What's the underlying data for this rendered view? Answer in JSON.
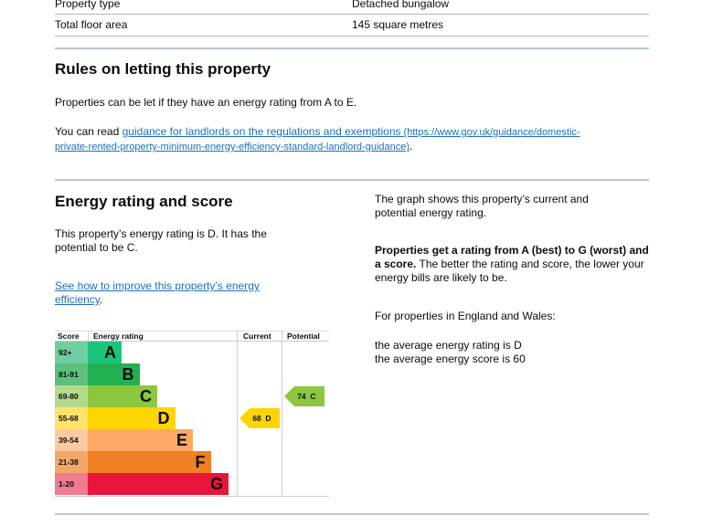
{
  "property": {
    "rows": [
      {
        "label": "Property type",
        "value": "Detached bungalow"
      },
      {
        "label": "Total floor area",
        "value": "145 square metres"
      }
    ]
  },
  "letting": {
    "title": "Rules on letting this property",
    "p1": "Properties can be let if they have an energy rating from A to E.",
    "p2_prefix": "You can read ",
    "link_text": "guidance for landlords on the regulations and exemptions",
    "link_url_line1": " (https://www.gov.uk/guidance/domestic-",
    "link_url_line2": "private-rented-property-minimum-energy-efficiency-standard-landlord-guidance)",
    "p2_suffix": "."
  },
  "energy": {
    "title": "Energy rating and score",
    "p1": "This property’s energy rating is D. It has the potential to be C.",
    "link_text": "See how to improve this property’s energy efficiency",
    "link_suffix": ".",
    "right_p1": "The graph shows this property’s current and potential energy rating.",
    "right_bold": "Properties get a rating from A (best) to G (worst) and a score.",
    "right_p2_rest": " The better the rating and score, the lower your energy bills are likely to be.",
    "right_p3": "For properties in England and Wales:",
    "right_p4": "the average energy rating is D",
    "right_p5": "the average energy score is 60"
  },
  "chart_data": {
    "type": "table",
    "headers": {
      "score": "Score",
      "rating": "Energy rating",
      "current": "Current",
      "potential": "Potential"
    },
    "bands": [
      {
        "score": "92+",
        "letter": "A",
        "color": "#1dc47c",
        "light": "#6fcfa3"
      },
      {
        "score": "81-91",
        "letter": "B",
        "color": "#22b052",
        "light": "#5ec07d"
      },
      {
        "score": "69-80",
        "letter": "C",
        "color": "#8dc63f",
        "light": "#b3d98a"
      },
      {
        "score": "55-68",
        "letter": "D",
        "color": "#ffd500",
        "light": "#ffe36a"
      },
      {
        "score": "39-54",
        "letter": "E",
        "color": "#fcaa65",
        "light": "#fccaa0"
      },
      {
        "score": "21-38",
        "letter": "F",
        "color": "#ef8023",
        "light": "#f3a86a"
      },
      {
        "score": "1-20",
        "letter": "G",
        "color": "#e9153b",
        "light": "#f07a8e"
      }
    ],
    "current": {
      "score": 68,
      "letter": "D",
      "label": "68  D",
      "color": "#ffd500"
    },
    "potential": {
      "score": 74,
      "letter": "C",
      "label": "74  C",
      "color": "#8dc63f"
    }
  }
}
